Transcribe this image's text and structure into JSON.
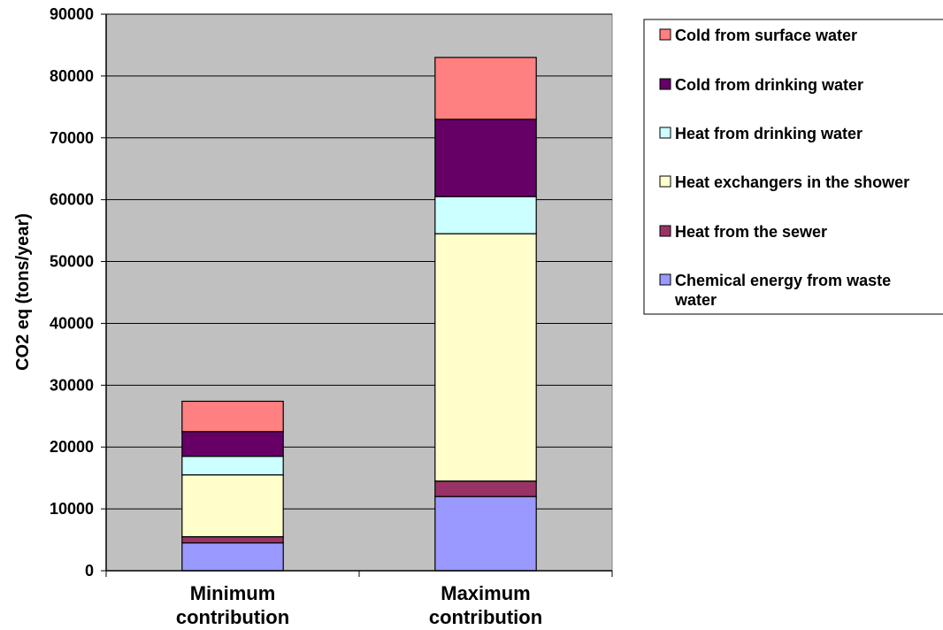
{
  "chart_data": {
    "type": "bar",
    "stacked": true,
    "title": "",
    "xlabel": "",
    "ylabel": "CO2 eq (tons/year)",
    "ylim": [
      0,
      90000
    ],
    "yticks": [
      0,
      10000,
      20000,
      30000,
      40000,
      50000,
      60000,
      70000,
      80000,
      90000
    ],
    "grid": true,
    "legend_position": "right",
    "plot_background": "#c0c0c0",
    "categories": [
      "Minimum contribution",
      "Maximum contribution"
    ],
    "series": [
      {
        "name": "Chemical energy from waste water",
        "color": "#9999ff",
        "values": [
          4500,
          12000
        ]
      },
      {
        "name": "Heat from the sewer",
        "color": "#993366",
        "values": [
          1000,
          2500
        ]
      },
      {
        "name": "Heat exchangers in the shower",
        "color": "#ffffcc",
        "values": [
          10000,
          40000
        ]
      },
      {
        "name": "Heat from drinking water",
        "color": "#ccffff",
        "values": [
          3000,
          6000
        ]
      },
      {
        "name": "Cold from drinking water",
        "color": "#660066",
        "values": [
          4000,
          12500
        ]
      },
      {
        "name": "Cold from surface water",
        "color": "#ff8080",
        "values": [
          4900,
          10000
        ]
      }
    ]
  }
}
